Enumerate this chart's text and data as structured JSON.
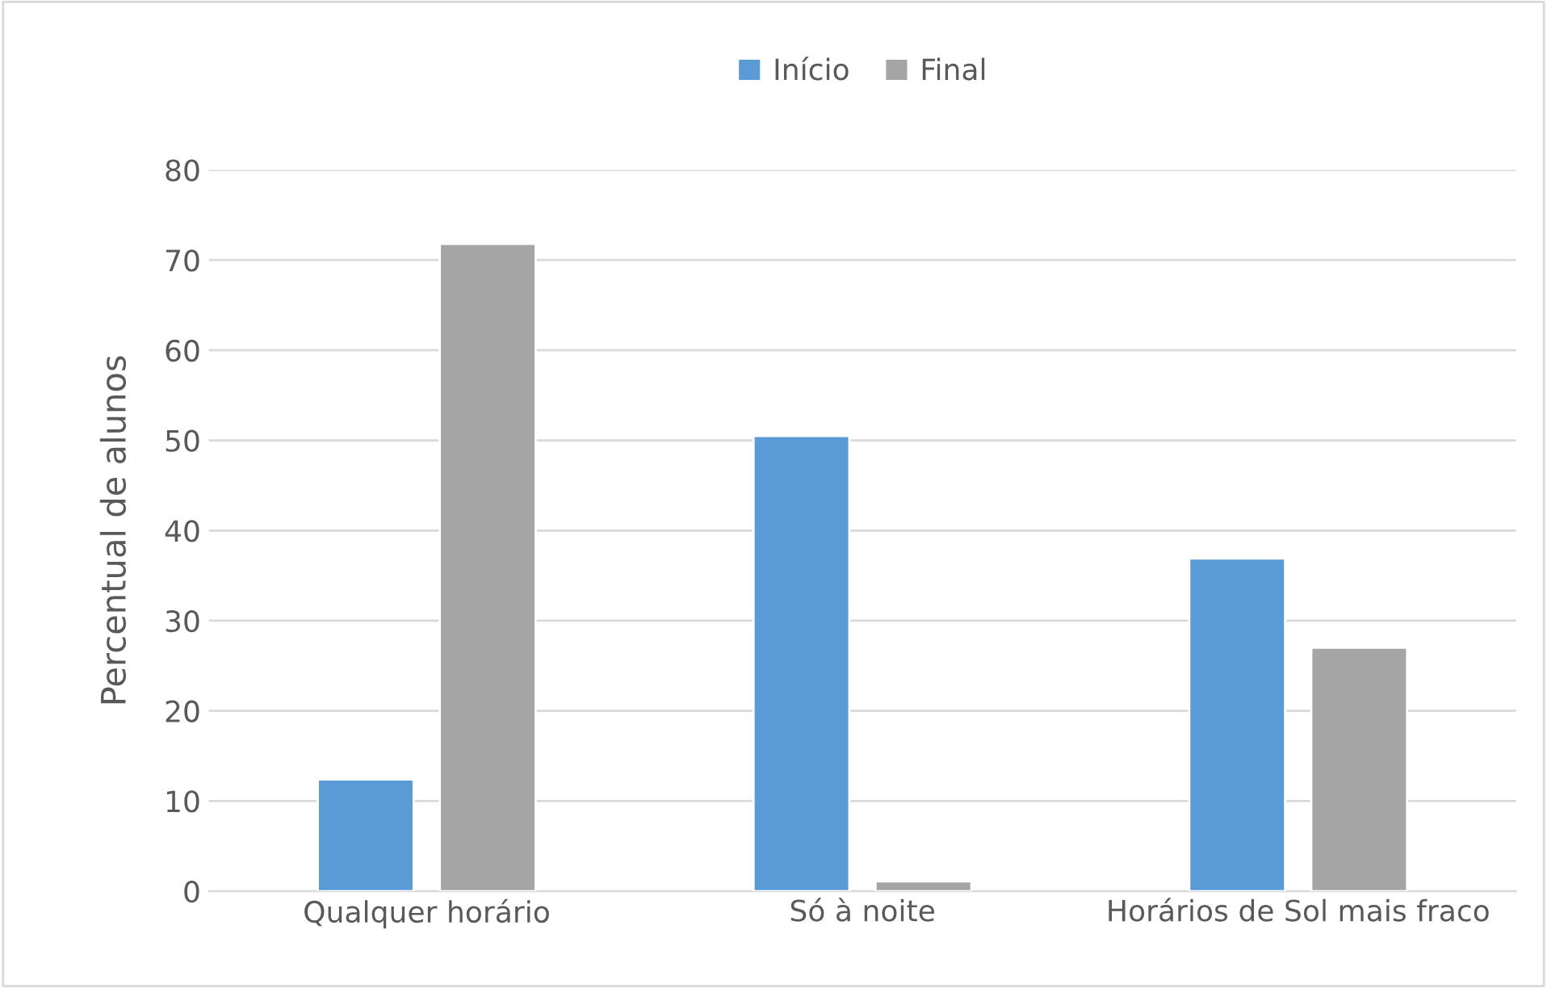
{
  "chart_data": {
    "type": "bar",
    "ylabel": "Percentual de alunos",
    "categories": [
      "Qualquer horário",
      "Só à noite",
      "Horários de Sol mais fraco"
    ],
    "series": [
      {
        "name": "Início",
        "color": "#5b9bd5",
        "values": [
          12.4,
          50.5,
          36.9
        ]
      },
      {
        "name": "Final",
        "color": "#a5a5a5",
        "values": [
          71.8,
          1.1,
          27.0
        ]
      }
    ],
    "ylim": [
      0,
      80
    ],
    "yticks": [
      0,
      10,
      20,
      30,
      40,
      50,
      60,
      70,
      80
    ],
    "grid": "y",
    "legend": "top"
  }
}
